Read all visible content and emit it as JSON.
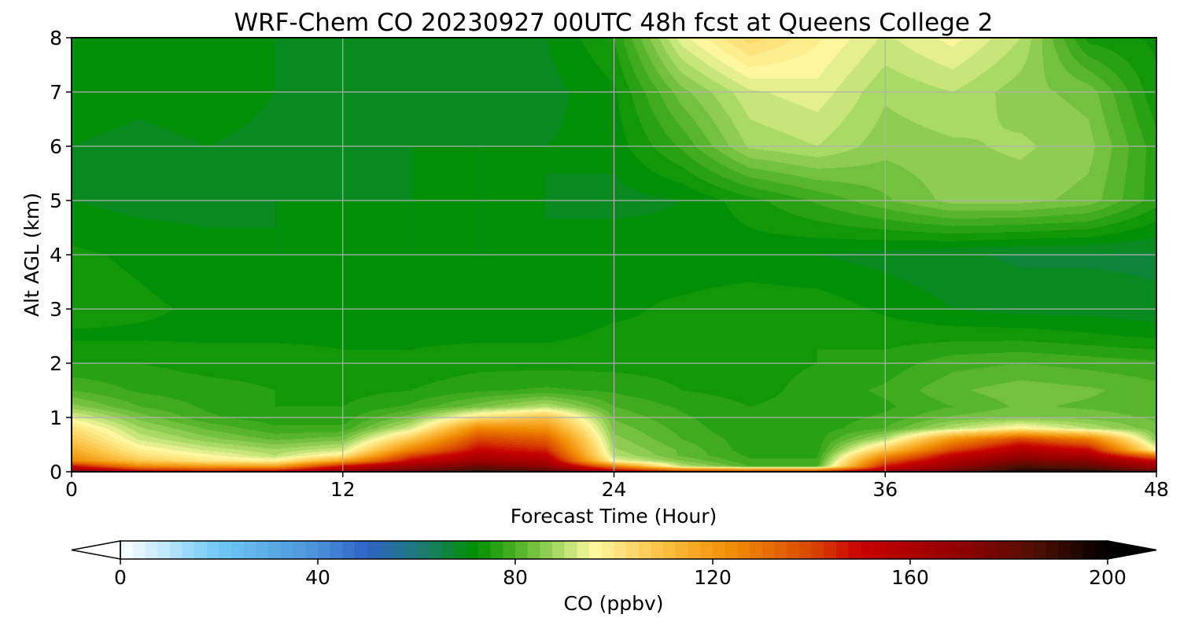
{
  "chart_data": {
    "type": "heatmap",
    "title": "WRF-Chem CO  20230927 00UTC 48h fcst at Queens College 2",
    "xlabel": "Forecast Time (Hour)",
    "ylabel": "Alt AGL (km)",
    "xlim": [
      0,
      48
    ],
    "ylim": [
      0,
      8
    ],
    "xticks": [
      "0",
      "12",
      "24",
      "36",
      "48"
    ],
    "yticks": [
      "0",
      "1",
      "2",
      "3",
      "4",
      "5",
      "6",
      "7",
      "8"
    ],
    "grid": true,
    "colorbar": {
      "label": "CO  (ppbv)",
      "range": [
        0,
        200
      ],
      "ticks": [
        "0",
        "40",
        "80",
        "120",
        "160",
        "200"
      ],
      "extend": "both",
      "colormap_stops": [
        {
          "value": 0,
          "color": "#ffffff"
        },
        {
          "value": 20,
          "color": "#6ec8f5"
        },
        {
          "value": 40,
          "color": "#4a90d9"
        },
        {
          "value": 50,
          "color": "#2f62c4"
        },
        {
          "value": 60,
          "color": "#1e7a7a"
        },
        {
          "value": 72,
          "color": "#009000"
        },
        {
          "value": 82,
          "color": "#60b830"
        },
        {
          "value": 90,
          "color": "#b8e070"
        },
        {
          "value": 96,
          "color": "#fff8a0"
        },
        {
          "value": 110,
          "color": "#fcc040"
        },
        {
          "value": 125,
          "color": "#f08800"
        },
        {
          "value": 140,
          "color": "#d84800"
        },
        {
          "value": 150,
          "color": "#c80000"
        },
        {
          "value": 170,
          "color": "#900000"
        },
        {
          "value": 185,
          "color": "#501000"
        },
        {
          "value": 200,
          "color": "#000000"
        }
      ]
    },
    "hours": [
      0,
      3,
      6,
      9,
      12,
      15,
      18,
      21,
      24,
      27,
      30,
      33,
      36,
      39,
      42,
      45,
      48
    ],
    "altitudes_km": [
      0,
      0.1,
      0.2,
      0.3,
      0.4,
      0.6,
      0.8,
      1.0,
      1.2,
      1.5,
      2,
      2.5,
      3,
      4,
      5,
      6,
      7,
      8
    ],
    "z_ppbv": [
      [
        175,
        155,
        150,
        155,
        170,
        180,
        190,
        185,
        160,
        150,
        148,
        150,
        165,
        180,
        195,
        195,
        180
      ],
      [
        150,
        125,
        120,
        118,
        150,
        168,
        178,
        170,
        128,
        90,
        80,
        80,
        148,
        168,
        185,
        180,
        165
      ],
      [
        125,
        108,
        100,
        97,
        118,
        150,
        165,
        160,
        95,
        85,
        78,
        78,
        135,
        160,
        175,
        172,
        150
      ],
      [
        120,
        102,
        96,
        90,
        100,
        140,
        158,
        152,
        90,
        82,
        77,
        77,
        122,
        152,
        166,
        160,
        128
      ],
      [
        115,
        98,
        92,
        88,
        92,
        126,
        150,
        145,
        88,
        82,
        76,
        76,
        108,
        140,
        158,
        150,
        96
      ],
      [
        108,
        92,
        86,
        82,
        84,
        108,
        140,
        135,
        86,
        80,
        76,
        76,
        90,
        122,
        140,
        128,
        85
      ],
      [
        102,
        88,
        82,
        78,
        78,
        92,
        125,
        122,
        84,
        79,
        75,
        76,
        80,
        90,
        98,
        90,
        83
      ],
      [
        94,
        84,
        78,
        76,
        76,
        84,
        102,
        110,
        82,
        78,
        75,
        76,
        78,
        83,
        85,
        84,
        82
      ],
      [
        86,
        80,
        77,
        75,
        75,
        78,
        84,
        90,
        80,
        77,
        75,
        76,
        77,
        80,
        83,
        82,
        81
      ],
      [
        80,
        77,
        76,
        75,
        74,
        75,
        77,
        78,
        77,
        75,
        74,
        76,
        78,
        82,
        84,
        83,
        81
      ],
      [
        75,
        75,
        74,
        74,
        73,
        73,
        74,
        74,
        74,
        74,
        74,
        75,
        76,
        79,
        80,
        79,
        78
      ],
      [
        72,
        72,
        72,
        72,
        72,
        72,
        72,
        72,
        73,
        73,
        74,
        75,
        74,
        74,
        74,
        73,
        72
      ],
      [
        74,
        73,
        72,
        72,
        71,
        71,
        71,
        71,
        72,
        73,
        74,
        74,
        72,
        70,
        69,
        69,
        68
      ],
      [
        73,
        72,
        71,
        70,
        70,
        70,
        70,
        70,
        72,
        71,
        71,
        70,
        69,
        68,
        67,
        67,
        67
      ],
      [
        70,
        69,
        69,
        70,
        70,
        70,
        70,
        70,
        69,
        70,
        74,
        78,
        82,
        86,
        86,
        84,
        76
      ],
      [
        70,
        69,
        70,
        69,
        68,
        70,
        70,
        70,
        71,
        78,
        88,
        90,
        86,
        87,
        88,
        86,
        76
      ],
      [
        72,
        71,
        72,
        70,
        69,
        69,
        68,
        69,
        72,
        84,
        92,
        94,
        88,
        90,
        86,
        84,
        73
      ],
      [
        70,
        70,
        70,
        70,
        69,
        70,
        70,
        70,
        75,
        94,
        104,
        98,
        92,
        96,
        90,
        74,
        72
      ]
    ]
  }
}
